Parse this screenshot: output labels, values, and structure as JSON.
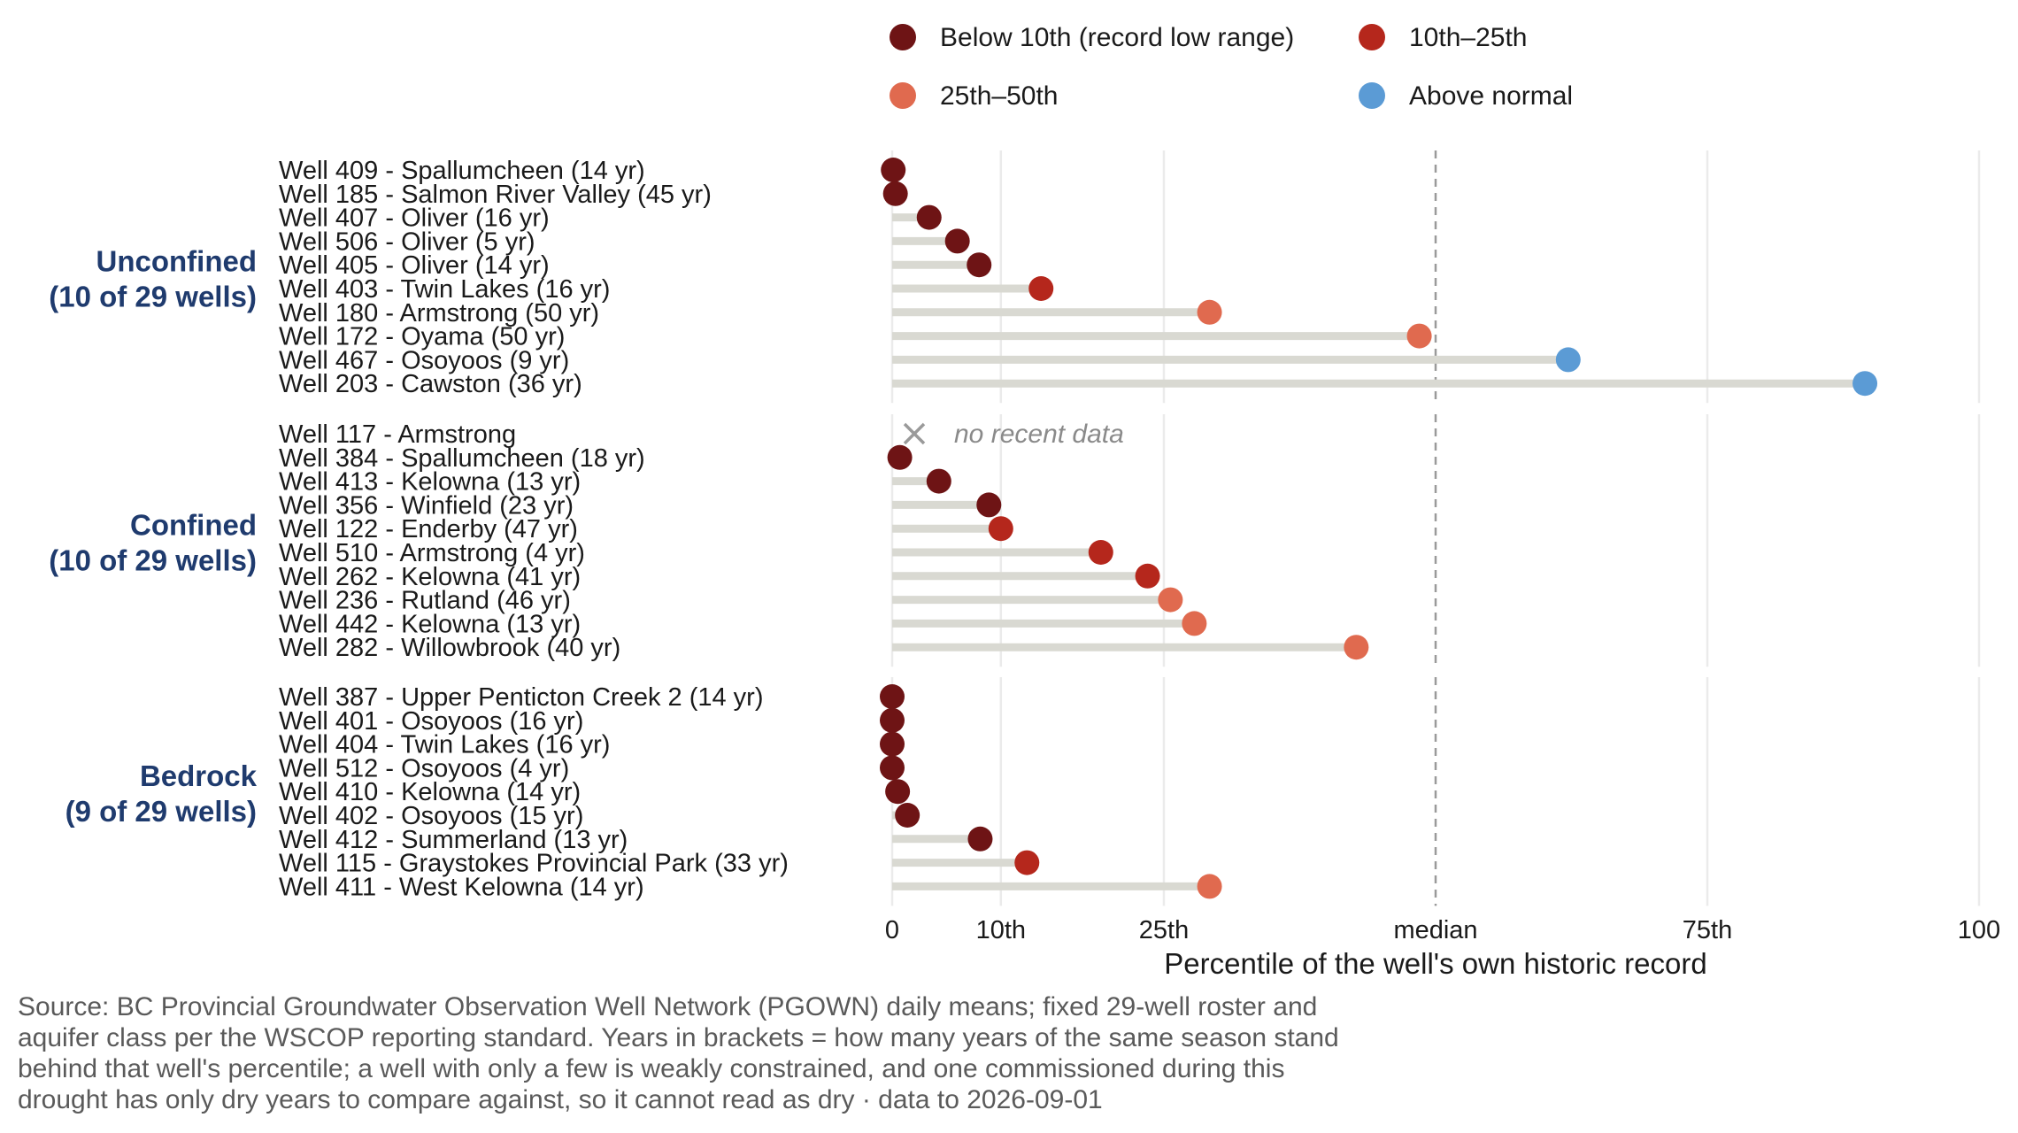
{
  "chart_data": {
    "type": "lollipop",
    "xlabel": "Percentile of the well's own historic record",
    "xlim": [
      0,
      100
    ],
    "x_ticks": [
      {
        "value": 0,
        "label": "0"
      },
      {
        "value": 10,
        "label": "10th"
      },
      {
        "value": 25,
        "label": "25th"
      },
      {
        "value": 50,
        "label": "median"
      },
      {
        "value": 75,
        "label": "75th"
      },
      {
        "value": 100,
        "label": "100"
      }
    ],
    "median_line": 50,
    "grid": true,
    "legend_position": "top",
    "legend": [
      {
        "key": "below10",
        "label": "Below 10th (record low range)",
        "color": "#6e1415"
      },
      {
        "key": "p10_25",
        "label": "10th–25th",
        "color": "#b5271c"
      },
      {
        "key": "p25_50",
        "label": "25th–50th",
        "color": "#e06a4f"
      },
      {
        "key": "above",
        "label": "Above normal",
        "color": "#5b9bd5"
      }
    ],
    "groups": [
      {
        "name": "Unconfined",
        "count_label": "(10 of 29 wells)",
        "wells": [
          {
            "label": "Well 409 - Spallumcheen (14 yr)",
            "value": 0.1,
            "category": "below10"
          },
          {
            "label": "Well 185 - Salmon River Valley (45 yr)",
            "value": 0.3,
            "category": "below10"
          },
          {
            "label": "Well 407 - Oliver (16 yr)",
            "value": 3.4,
            "category": "below10"
          },
          {
            "label": "Well 506 - Oliver (5 yr)",
            "value": 6,
            "category": "below10"
          },
          {
            "label": "Well 405 - Oliver (14 yr)",
            "value": 8,
            "category": "below10"
          },
          {
            "label": "Well 403 - Twin Lakes (16 yr)",
            "value": 13.7,
            "category": "p10_25"
          },
          {
            "label": "Well 180 - Armstrong (50 yr)",
            "value": 29.2,
            "category": "p25_50"
          },
          {
            "label": "Well 172 - Oyama (50 yr)",
            "value": 48.5,
            "category": "p25_50"
          },
          {
            "label": "Well 467 - Osoyoos (9 yr)",
            "value": 62.2,
            "category": "above"
          },
          {
            "label": "Well 203 - Cawston (36 yr)",
            "value": 89.5,
            "category": "above"
          }
        ]
      },
      {
        "name": "Confined",
        "count_label": "(10 of 29 wells)",
        "wells": [
          {
            "label": "Well 117 - Armstrong",
            "value": null,
            "category": "none",
            "note": "no recent data"
          },
          {
            "label": "Well 384 - Spallumcheen (18 yr)",
            "value": 0.7,
            "category": "below10"
          },
          {
            "label": "Well 413 - Kelowna (13 yr)",
            "value": 4.3,
            "category": "below10"
          },
          {
            "label": "Well 356 - Winfield (23 yr)",
            "value": 8.9,
            "category": "below10"
          },
          {
            "label": "Well 122 - Enderby (47 yr)",
            "value": 10,
            "category": "p10_25"
          },
          {
            "label": "Well 510 - Armstrong (4 yr)",
            "value": 19.2,
            "category": "p10_25"
          },
          {
            "label": "Well 262 - Kelowna (41 yr)",
            "value": 23.5,
            "category": "p10_25"
          },
          {
            "label": "Well 236 - Rutland (46 yr)",
            "value": 25.6,
            "category": "p25_50"
          },
          {
            "label": "Well 442 - Kelowna (13 yr)",
            "value": 27.8,
            "category": "p25_50"
          },
          {
            "label": "Well 282 - Willowbrook (40 yr)",
            "value": 42.7,
            "category": "p25_50"
          }
        ]
      },
      {
        "name": "Bedrock",
        "count_label": "(9 of 29 wells)",
        "wells": [
          {
            "label": "Well 387 - Upper Penticton Creek 2 (14 yr)",
            "value": 0,
            "category": "below10"
          },
          {
            "label": "Well 401 - Osoyoos (16 yr)",
            "value": 0,
            "category": "below10"
          },
          {
            "label": "Well 404 - Twin Lakes (16 yr)",
            "value": 0,
            "category": "below10"
          },
          {
            "label": "Well 512 - Osoyoos (4 yr)",
            "value": 0,
            "category": "below10"
          },
          {
            "label": "Well 410 - Kelowna (14 yr)",
            "value": 0.5,
            "category": "below10"
          },
          {
            "label": "Well 402 - Osoyoos (15 yr)",
            "value": 1.4,
            "category": "below10"
          },
          {
            "label": "Well 412 - Summerland (13 yr)",
            "value": 8.1,
            "category": "below10"
          },
          {
            "label": "Well 115 - Graystokes Provincial Park (33 yr)",
            "value": 12.4,
            "category": "p10_25"
          },
          {
            "label": "Well 411 - West Kelowna (14 yr)",
            "value": 29.2,
            "category": "p25_50"
          }
        ]
      }
    ]
  },
  "caption": {
    "lines": [
      "Source: BC Provincial Groundwater Observation Well Network (PGOWN) daily means; fixed 29-well roster and",
      "aquifer class per the WSCOP reporting standard. Years in brackets = how many years of the same season stand",
      "behind that well's percentile; a well with only a few is weakly constrained, and one commissioned during this",
      "drought has only dry years to compare against, so it cannot read as dry · data to 2026-09-01"
    ]
  },
  "colors": {
    "stem": "#d9d9d2",
    "grid": "#ebebeb",
    "median_line": "#9a9a9a",
    "no_data_marker": "#9a9a9a",
    "group_label": "#1f3b6e"
  }
}
